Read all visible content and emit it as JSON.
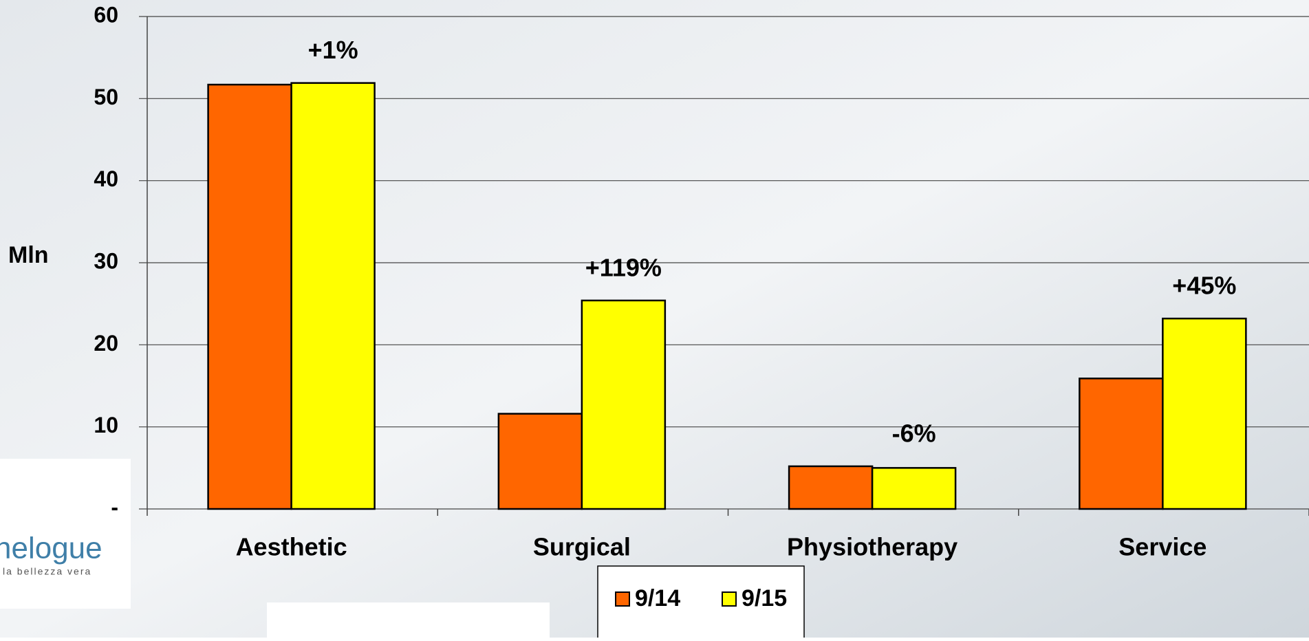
{
  "chart_data": {
    "type": "bar",
    "y_label": "Mln",
    "categories": [
      "Aesthetic",
      "Surgical",
      "Physiotherapy",
      "Service"
    ],
    "series": [
      {
        "name": "9/14",
        "color": "#ff6600",
        "values": [
          51.7,
          11.6,
          5.2,
          15.9
        ]
      },
      {
        "name": "9/15",
        "color": "#ffff00",
        "values": [
          51.9,
          25.4,
          5.0,
          23.2
        ]
      }
    ],
    "annotations": [
      "+1%",
      "+119%",
      "-6%",
      "+45%"
    ],
    "ylim": [
      0,
      60
    ],
    "yticks": [
      {
        "value": 0,
        "label": "-"
      },
      10,
      20,
      30,
      40,
      50,
      60
    ],
    "grid": true
  },
  "logo": {
    "name": "helogue",
    "tagline": "la bellezza vera"
  }
}
